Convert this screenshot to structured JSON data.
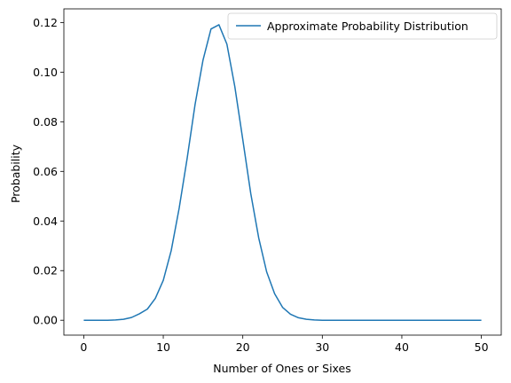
{
  "chart_data": {
    "type": "line",
    "title": "",
    "xlabel": "Number of Ones or Sixes",
    "ylabel": "Probability",
    "xlim": [
      -2.5,
      52.5
    ],
    "ylim": [
      -0.006,
      0.1255
    ],
    "x_ticks": [
      0,
      10,
      20,
      30,
      40,
      50
    ],
    "y_ticks": [
      0.0,
      0.02,
      0.04,
      0.06,
      0.08,
      0.1,
      0.12
    ],
    "x_tick_labels": [
      "0",
      "10",
      "20",
      "30",
      "40",
      "50"
    ],
    "y_tick_labels": [
      "0.00",
      "0.02",
      "0.04",
      "0.06",
      "0.08",
      "0.10",
      "0.12"
    ],
    "grid": false,
    "legend_position": "top-right",
    "series": [
      {
        "name": "Approximate Probability Distribution",
        "color": "#1f77b4",
        "x": [
          0,
          1,
          2,
          3,
          4,
          5,
          6,
          7,
          8,
          9,
          10,
          11,
          12,
          13,
          14,
          15,
          16,
          17,
          18,
          19,
          20,
          21,
          22,
          23,
          24,
          25,
          26,
          27,
          28,
          29,
          30,
          31,
          32,
          33,
          34,
          35,
          36,
          37,
          38,
          39,
          40,
          41,
          42,
          43,
          44,
          45,
          46,
          47,
          48,
          49,
          50
        ],
        "values": [
          0,
          0,
          0,
          0,
          0.0001,
          0.0004,
          0.0011,
          0.0026,
          0.0045,
          0.0088,
          0.0161,
          0.0281,
          0.0452,
          0.0652,
          0.087,
          0.1049,
          0.1174,
          0.1191,
          0.1113,
          0.0941,
          0.0728,
          0.0511,
          0.0332,
          0.0195,
          0.0107,
          0.0052,
          0.0024,
          0.001,
          0.0004,
          0.0001,
          0,
          0,
          0,
          0,
          0,
          0,
          0,
          0,
          0,
          0,
          0,
          0,
          0,
          0,
          0,
          0,
          0,
          0,
          0,
          0,
          0
        ]
      }
    ]
  }
}
